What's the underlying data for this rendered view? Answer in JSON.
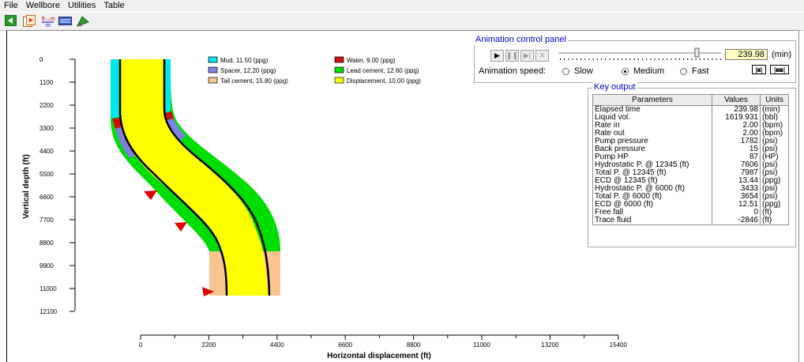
{
  "menu": [
    "File",
    "Wellbore",
    "Utilities",
    "Table"
  ],
  "toolbar": {
    "buttons": [
      "back-arrow-icon",
      "play-video-icon",
      "ft-m-units-icon",
      "table-icon",
      "run-animation-icon"
    ],
    "units_icon_text": "ft↔m"
  },
  "plot": {
    "y_label": "Vertical depth (ft)",
    "x_label": "Horizontal displacement (ft)",
    "y_ticks": [
      "0",
      "1100",
      "2200",
      "3300",
      "4400",
      "5500",
      "6600",
      "7700",
      "8800",
      "9900",
      "11000",
      "12100"
    ],
    "x_ticks": [
      "0",
      "2200",
      "4400",
      "6600",
      "8800",
      "11000",
      "13200",
      "15400"
    ],
    "legend": [
      {
        "label": "Mud, 11.50 (ppg)",
        "color": "#00e5ee"
      },
      {
        "label": "Water, 9.00 (ppg)",
        "color": "#d01010"
      },
      {
        "label": "Spacer, 12.20 (ppg)",
        "color": "#8080e0"
      },
      {
        "label": "Lead cement, 12.60 (ppg)",
        "color": "#00dd00"
      },
      {
        "label": "Tail cement, 15.80 (ppg)",
        "color": "#f9c490"
      },
      {
        "label": "Displacement, 10.00 (ppg)",
        "color": "#ffff00"
      }
    ]
  },
  "animation_panel": {
    "title": "Animation control panel",
    "time_value": "239.98",
    "time_unit": "(min)",
    "speed_label": "Animation speed:",
    "speeds": [
      "Slow",
      "Medium",
      "Fast"
    ],
    "selected_speed": "Medium",
    "play_symbol": "▶",
    "pause_symbol": "❚❚",
    "step_symbol": "▶|",
    "stop_symbol": "✕",
    "cam_one": "[◙]",
    "cam_two": "[◙◙]"
  },
  "key_output": {
    "title": "Key output",
    "headers": [
      "Parameters",
      "Values",
      "Units"
    ],
    "rows": [
      {
        "param": "Elapsed time",
        "value": "239.98",
        "unit": "(min)"
      },
      {
        "param": "Liquid vol.",
        "value": "1619.931",
        "unit": "(bbl)"
      },
      {
        "param": "Rate in",
        "value": "2.00",
        "unit": "(bpm)"
      },
      {
        "param": "Rate out",
        "value": "2.00",
        "unit": "(bpm)"
      },
      {
        "param": "Pump pressure",
        "value": "1782",
        "unit": "(psi)"
      },
      {
        "param": "Back pressure",
        "value": "15",
        "unit": "(psi)"
      },
      {
        "param": "Pump HP",
        "value": "87",
        "unit": "(HP)"
      },
      {
        "param": "Hydrostatic P. @ 12345 (ft)",
        "value": "7606",
        "unit": "(psi)"
      },
      {
        "param": "Total P. @ 12345 (ft)",
        "value": "7987",
        "unit": "(psi)"
      },
      {
        "param": "ECD @ 12345 (ft)",
        "value": "13.44",
        "unit": "(ppg)"
      },
      {
        "param": "Hydrostatic P. @ 6000 (ft)",
        "value": "3433",
        "unit": "(psi)"
      },
      {
        "param": "Total P. @ 6000 (ft)",
        "value": "3654",
        "unit": "(psi)"
      },
      {
        "param": "ECD @ 6000 (ft)",
        "value": "12.51",
        "unit": "(ppg)"
      },
      {
        "param": "Free fall",
        "value": "0",
        "unit": "(ft)"
      },
      {
        "param": "Trace fluid",
        "value": "-2846",
        "unit": "(ft)"
      }
    ]
  }
}
